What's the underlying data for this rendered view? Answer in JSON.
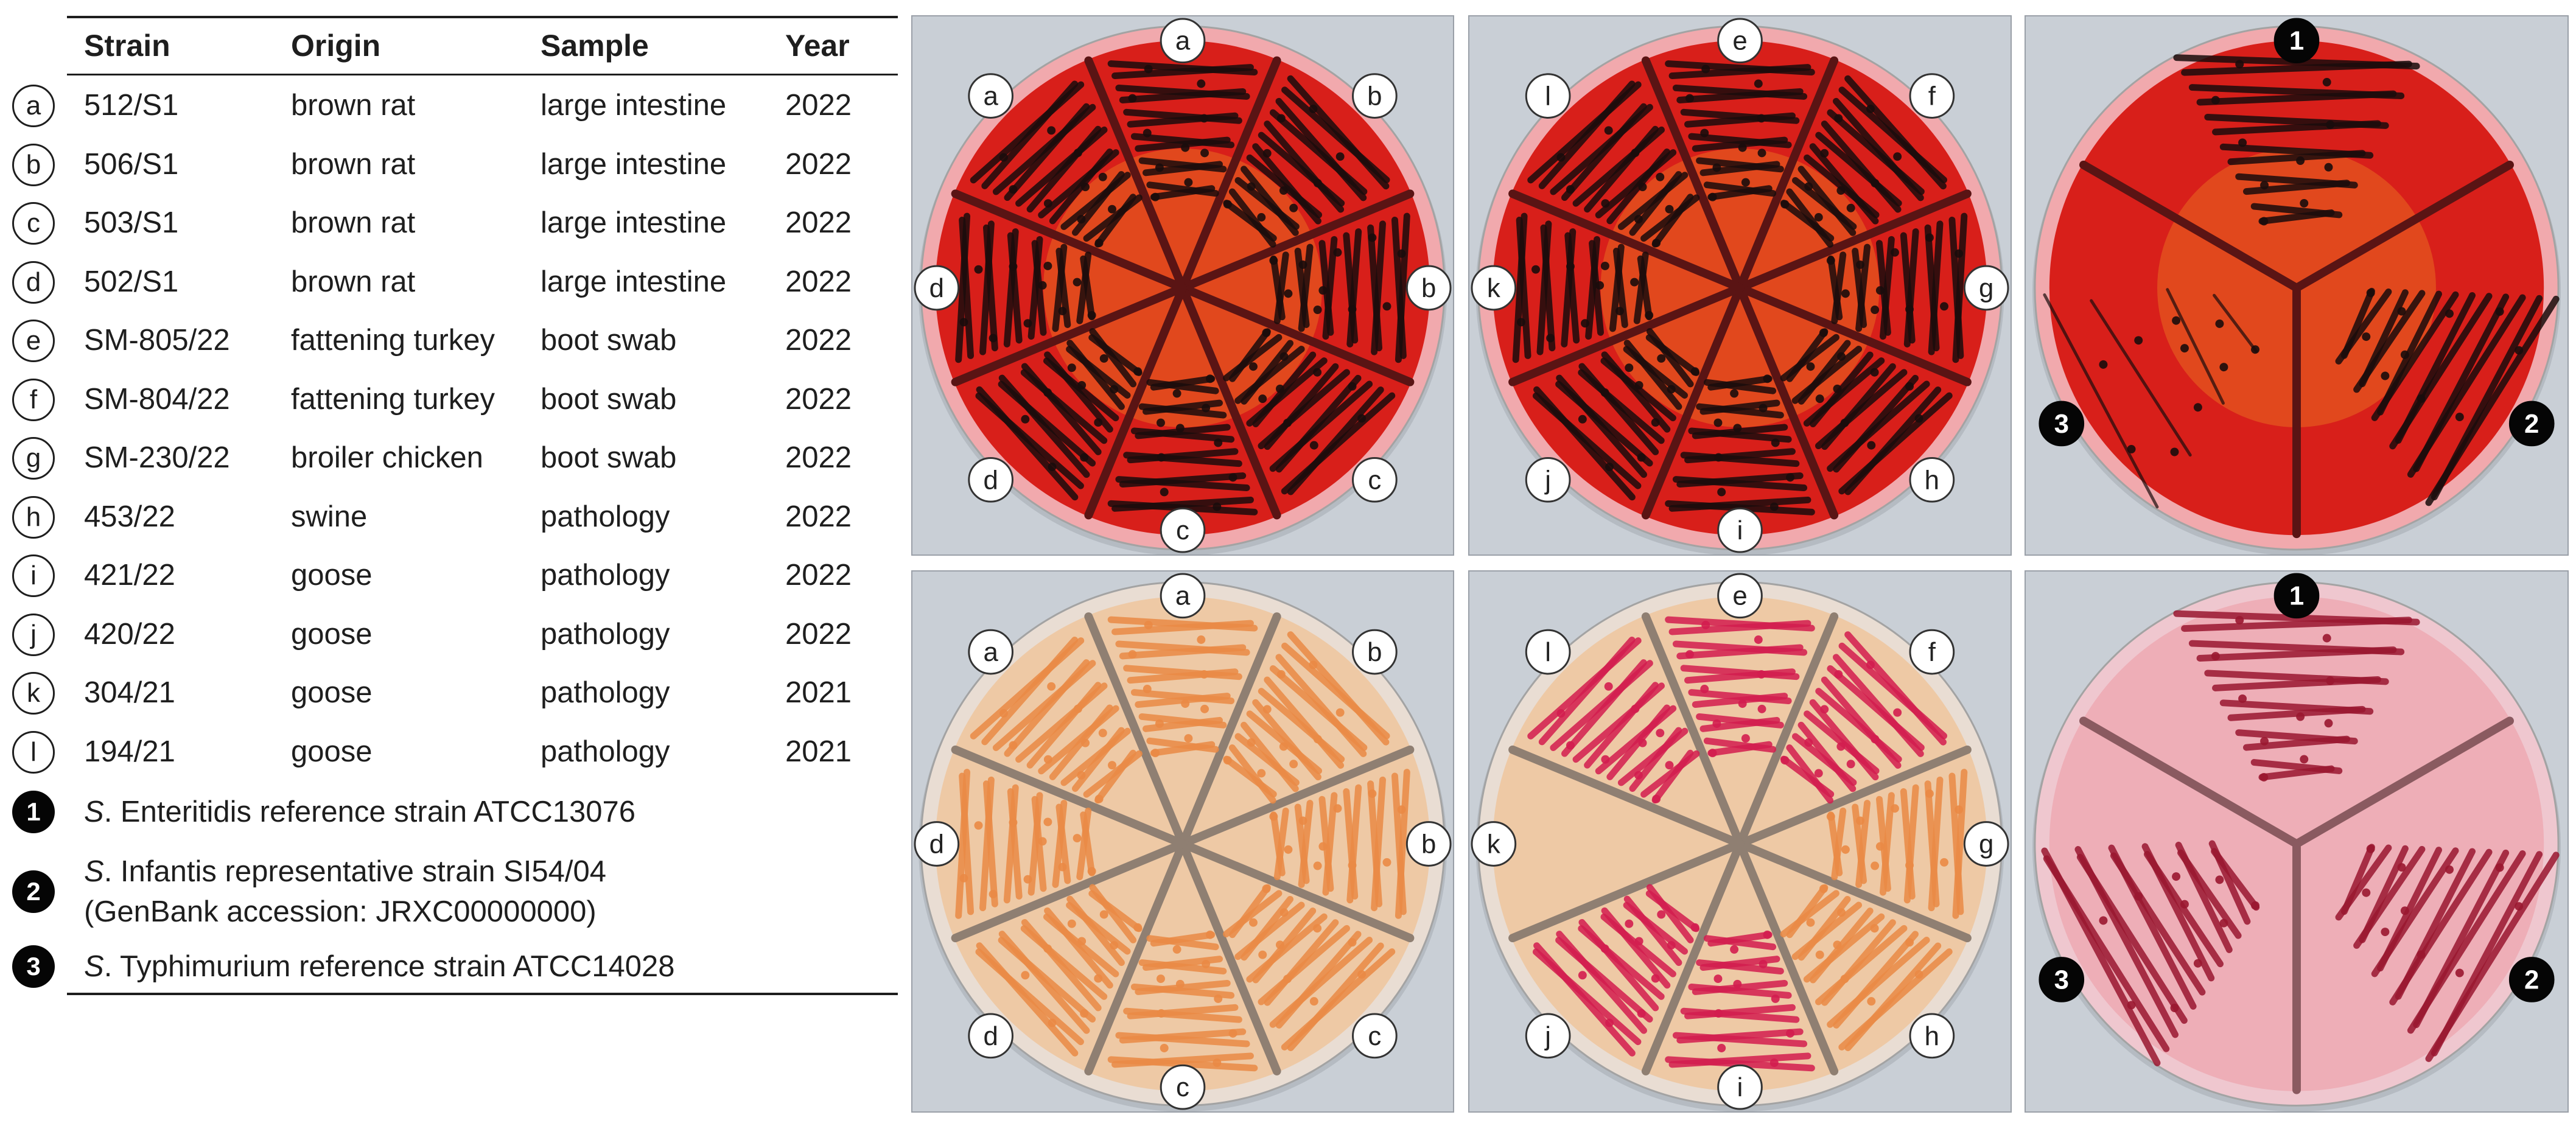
{
  "table": {
    "headers": {
      "strain": "Strain",
      "origin": "Origin",
      "sample": "Sample",
      "year": "Year"
    },
    "rows": [
      {
        "label": "a",
        "strain": "512/S1",
        "origin": "brown rat",
        "sample": "large intestine",
        "year": "2022"
      },
      {
        "label": "b",
        "strain": "506/S1",
        "origin": "brown rat",
        "sample": "large intestine",
        "year": "2022"
      },
      {
        "label": "c",
        "strain": "503/S1",
        "origin": "brown rat",
        "sample": "large intestine",
        "year": "2022"
      },
      {
        "label": "d",
        "strain": "502/S1",
        "origin": "brown rat",
        "sample": "large intestine",
        "year": "2022"
      },
      {
        "label": "e",
        "strain": "SM-805/22",
        "origin": "fattening turkey",
        "sample": "boot swab",
        "year": "2022"
      },
      {
        "label": "f",
        "strain": "SM-804/22",
        "origin": "fattening turkey",
        "sample": "boot swab",
        "year": "2022"
      },
      {
        "label": "g",
        "strain": "SM-230/22",
        "origin": "broiler chicken",
        "sample": "boot swab",
        "year": "2022"
      },
      {
        "label": "h",
        "strain": "453/22",
        "origin": "swine",
        "sample": "pathology",
        "year": "2022"
      },
      {
        "label": "i",
        "strain": "421/22",
        "origin": "goose",
        "sample": "pathology",
        "year": "2022"
      },
      {
        "label": "j",
        "strain": "420/22",
        "origin": "goose",
        "sample": "pathology",
        "year": "2022"
      },
      {
        "label": "k",
        "strain": "304/21",
        "origin": "goose",
        "sample": "pathology",
        "year": "2021"
      },
      {
        "label": "l",
        "strain": "194/21",
        "origin": "goose",
        "sample": "pathology",
        "year": "2021"
      }
    ],
    "references": [
      {
        "label": "1",
        "genus": "S",
        "line1": ". Enteritidis reference strain ATCC13076",
        "line2": ""
      },
      {
        "label": "2",
        "genus": "S",
        "line1": ". Infantis representative strain SI54/04",
        "line2": "(GenBank accession: JRXC00000000)"
      },
      {
        "label": "3",
        "genus": "S",
        "line1": ". Typhimurium reference strain ATCC14028",
        "line2": ""
      }
    ]
  },
  "photos": [
    {
      "name": "plate-xld-a-to-d",
      "medium": "red",
      "type": "eight",
      "sectors": [
        {
          "label": "a",
          "growth": "black"
        },
        {
          "label": "b",
          "growth": "black"
        },
        {
          "label": "b",
          "growth": "black"
        },
        {
          "label": "c",
          "growth": "black"
        },
        {
          "label": "c",
          "growth": "black"
        },
        {
          "label": "d",
          "growth": "black"
        },
        {
          "label": "d",
          "growth": "black"
        },
        {
          "label": "a",
          "growth": "black"
        }
      ]
    },
    {
      "name": "plate-xld-e-to-l",
      "medium": "red",
      "type": "eight",
      "sectors": [
        {
          "label": "e",
          "growth": "black"
        },
        {
          "label": "f",
          "growth": "black"
        },
        {
          "label": "g",
          "growth": "black"
        },
        {
          "label": "h",
          "growth": "black"
        },
        {
          "label": "i",
          "growth": "black"
        },
        {
          "label": "j",
          "growth": "black"
        },
        {
          "label": "k",
          "growth": "black"
        },
        {
          "label": "l",
          "growth": "black"
        }
      ]
    },
    {
      "name": "plate-xld-references",
      "medium": "red",
      "type": "three",
      "sectors": [
        {
          "label": "1",
          "growth": "black"
        },
        {
          "label": "2",
          "growth": "black"
        },
        {
          "label": "3",
          "growth": "sparse"
        }
      ]
    },
    {
      "name": "plate-chromogenic-a-to-d",
      "medium": "beige",
      "type": "eight",
      "sectors": [
        {
          "label": "a",
          "growth": "orange"
        },
        {
          "label": "b",
          "growth": "orange"
        },
        {
          "label": "b",
          "growth": "orange"
        },
        {
          "label": "c",
          "growth": "orange"
        },
        {
          "label": "c",
          "growth": "orange"
        },
        {
          "label": "d",
          "growth": "orange"
        },
        {
          "label": "d",
          "growth": "orange"
        },
        {
          "label": "a",
          "growth": "orange"
        }
      ]
    },
    {
      "name": "plate-chromogenic-e-to-l",
      "medium": "beige",
      "type": "eight",
      "sectors": [
        {
          "label": "e",
          "growth": "magenta"
        },
        {
          "label": "f",
          "growth": "magenta"
        },
        {
          "label": "g",
          "growth": "orange"
        },
        {
          "label": "h",
          "growth": "orange"
        },
        {
          "label": "i",
          "growth": "magenta"
        },
        {
          "label": "j",
          "growth": "magenta"
        },
        {
          "label": "k",
          "growth": "none"
        },
        {
          "label": "l",
          "growth": "magenta"
        }
      ]
    },
    {
      "name": "plate-chromogenic-references",
      "medium": "pink",
      "type": "three",
      "sectors": [
        {
          "label": "1",
          "growth": "darkred"
        },
        {
          "label": "2",
          "growth": "darkred"
        },
        {
          "label": "3",
          "growth": "darkred"
        }
      ]
    }
  ],
  "colors": {
    "ink": "#1e1e1e",
    "photo_background": "#c9cfd6",
    "red_medium": "#d81f1a",
    "beige_medium": "#eec9a5",
    "pink_medium": "#eeaeb7",
    "black_colony": "#1a0c0c",
    "orange_colony": "#ea8a45",
    "magenta_colony": "#d31d4f",
    "darkred_colony": "#9a1730"
  }
}
